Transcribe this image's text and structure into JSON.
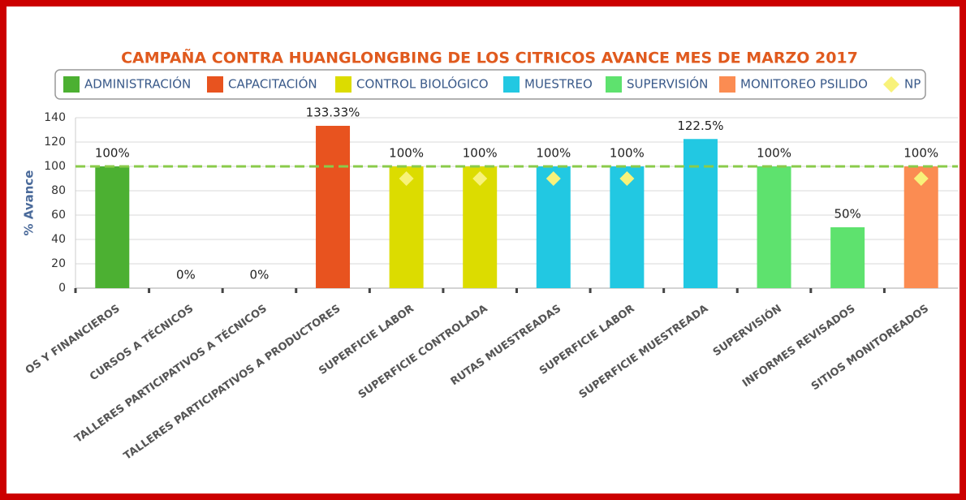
{
  "chart_data": {
    "type": "bar",
    "title": "CAMPAÑA CONTRA HUANGLONGBING DE LOS CITRICOS AVANCE MES DE MARZO 2017",
    "y_label": "% Avance",
    "categories": [
      "OS Y FINANCIEROS",
      "CURSOS A TÉCNICOS",
      "TALLERES PARTICIPATIVOS A TÉCNICOS",
      "TALLERES PARTICIPATIVOS A PRODUCTORES",
      "SUPERFICIE LABOR",
      "SUPERFICIE CONTROLADA",
      "RUTAS MUESTREADAS",
      "SUPERFICIE LABOR",
      "SUPERFICIE MUESTREADA",
      "SUPERVISIÓN",
      "INFORMES REVISADOS",
      "SITIOS MONITOREADOS"
    ],
    "series": [
      {
        "name": "ADMINISTRACIÓN",
        "color": "#4cb032",
        "values": [
          100,
          null,
          null,
          null,
          null,
          null,
          null,
          null,
          null,
          null,
          null,
          null
        ],
        "value_labels": [
          "100%",
          null,
          null,
          null,
          null,
          null,
          null,
          null,
          null,
          null,
          null,
          null
        ]
      },
      {
        "name": "CAPACITACIÓN",
        "color": "#e8531f",
        "values": [
          null,
          0,
          0,
          133.33,
          null,
          null,
          null,
          null,
          null,
          null,
          null,
          null
        ],
        "value_labels": [
          null,
          "0%",
          "0%",
          "133.33%",
          null,
          null,
          null,
          null,
          null,
          null,
          null,
          null
        ]
      },
      {
        "name": "CONTROL BIOLÓGICO",
        "color": "#dcdc00",
        "values": [
          null,
          null,
          null,
          null,
          100,
          100,
          null,
          null,
          null,
          null,
          null,
          null
        ],
        "value_labels": [
          null,
          null,
          null,
          null,
          "100%",
          "100%",
          null,
          null,
          null,
          null,
          null,
          null
        ]
      },
      {
        "name": "MUESTREO",
        "color": "#22c8e2",
        "values": [
          null,
          null,
          null,
          null,
          null,
          null,
          100,
          100,
          122.5,
          null,
          null,
          null
        ],
        "value_labels": [
          null,
          null,
          null,
          null,
          null,
          null,
          "100%",
          "100%",
          "122.5%",
          null,
          null,
          null
        ]
      },
      {
        "name": "SUPERVISIÓN",
        "color": "#5ee26e",
        "values": [
          null,
          null,
          null,
          null,
          null,
          null,
          null,
          null,
          null,
          100,
          50,
          null
        ],
        "value_labels": [
          null,
          null,
          null,
          null,
          null,
          null,
          null,
          null,
          null,
          "100%",
          "50%",
          null
        ]
      },
      {
        "name": "MONITOREO PSILIDO",
        "color": "#fb8c52",
        "values": [
          null,
          null,
          null,
          null,
          null,
          null,
          null,
          null,
          null,
          null,
          null,
          100
        ],
        "value_labels": [
          null,
          null,
          null,
          null,
          null,
          null,
          null,
          null,
          null,
          null,
          null,
          "100%"
        ]
      },
      {
        "name": "NP",
        "type": "scatter",
        "color": "#f8f27a",
        "values": [
          null,
          null,
          null,
          null,
          90,
          90,
          90,
          90,
          null,
          null,
          null,
          90
        ]
      }
    ],
    "target": 100,
    "ylim": [
      0,
      140
    ],
    "yticks": [
      0,
      20,
      40,
      60,
      80,
      100,
      120,
      140
    ],
    "grid": true
  }
}
